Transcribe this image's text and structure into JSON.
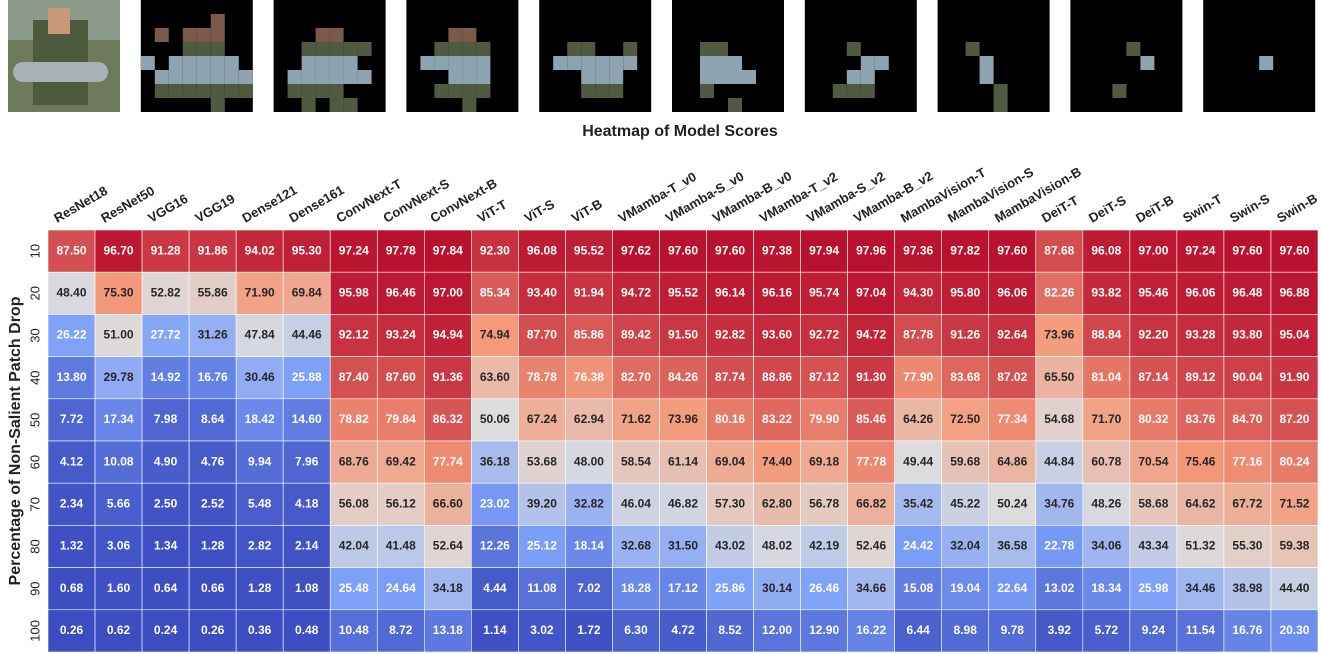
{
  "chart_data": {
    "type": "heatmap",
    "title": "Heatmap of Model Scores",
    "ylabel": "Percentage of Non-Salient Patch Drop",
    "x_categories": [
      "ResNet18",
      "ResNet50",
      "VGG16",
      "VGG19",
      "Dense121",
      "Dense161",
      "ConvNext-T",
      "ConvNext-S",
      "ConvNext-B",
      "ViT-T",
      "ViT-S",
      "ViT-B",
      "VMamba-T_v0",
      "VMamba-S_v0",
      "VMamba-B_v0",
      "VMamba-T_v2",
      "VMamba-S_v2",
      "VMamba-B_v2",
      "MambaVision-T",
      "MambaVision-S",
      "MambaVision-B",
      "DeiT-T",
      "DeiT-S",
      "DeiT-B",
      "Swin-T",
      "Swin-S",
      "Swin-B"
    ],
    "y_categories": [
      10,
      20,
      30,
      40,
      50,
      60,
      70,
      80,
      90,
      100
    ],
    "vlim": [
      0,
      100
    ],
    "colormap": [
      "#3b4cc0",
      "#7b9ff9",
      "#dddddd",
      "#f49a7b",
      "#b40426"
    ],
    "values": [
      [
        87.5,
        96.7,
        91.28,
        91.86,
        94.02,
        95.3,
        97.24,
        97.78,
        97.84,
        92.3,
        96.08,
        95.52,
        97.62,
        97.6,
        97.6,
        97.38,
        97.94,
        97.96,
        97.36,
        97.82,
        97.6,
        87.68,
        96.08,
        97,
        97.24,
        97.6,
        97.6
      ],
      [
        48.4,
        75.3,
        52.82,
        55.86,
        71.9,
        69.84,
        95.98,
        96.46,
        97,
        85.34,
        93.4,
        91.94,
        94.72,
        95.52,
        96.14,
        96.16,
        95.74,
        97.04,
        94.3,
        95.8,
        96.06,
        82.26,
        93.82,
        95.46,
        96.06,
        96.48,
        96.88
      ],
      [
        26.22,
        51,
        27.72,
        31.26,
        47.84,
        44.46,
        92.12,
        93.24,
        94.94,
        74.94,
        87.7,
        85.86,
        89.42,
        91.5,
        92.82,
        93.6,
        92.72,
        94.72,
        87.78,
        91.26,
        92.64,
        73.96,
        88.84,
        92.2,
        93.28,
        93.8,
        95.04
      ],
      [
        13.8,
        29.78,
        14.92,
        16.76,
        30.46,
        25.88,
        87.4,
        87.6,
        91.36,
        63.6,
        78.78,
        76.38,
        82.7,
        84.26,
        87.74,
        88.86,
        87.12,
        91.3,
        77.9,
        83.68,
        87.02,
        65.5,
        81.04,
        87.14,
        89.12,
        90.04,
        91.9
      ],
      [
        7.72,
        17.34,
        7.98,
        8.64,
        18.42,
        14.6,
        78.82,
        79.84,
        86.32,
        50.06,
        67.24,
        62.94,
        71.62,
        73.96,
        80.16,
        83.22,
        79.9,
        85.46,
        64.26,
        72.5,
        77.34,
        54.68,
        71.7,
        80.32,
        83.76,
        84.7,
        87.2
      ],
      [
        4.12,
        10.08,
        4.9,
        4.76,
        9.94,
        7.96,
        68.76,
        69.42,
        77.74,
        36.18,
        53.68,
        48,
        58.54,
        61.14,
        69.04,
        74.4,
        69.18,
        77.78,
        49.44,
        59.68,
        64.86,
        44.84,
        60.78,
        70.54,
        75.46,
        77.16,
        80.24
      ],
      [
        2.34,
        5.66,
        2.5,
        2.52,
        5.48,
        4.18,
        56.08,
        56.12,
        66.6,
        23.02,
        39.2,
        32.82,
        46.04,
        46.82,
        57.3,
        62.8,
        56.78,
        66.82,
        35.42,
        45.22,
        50.24,
        34.76,
        48.26,
        58.68,
        64.62,
        67.72,
        71.52
      ],
      [
        1.32,
        3.06,
        1.34,
        1.28,
        2.82,
        2.14,
        42.04,
        41.48,
        52.64,
        12.26,
        25.12,
        18.14,
        32.68,
        31.5,
        43.02,
        48.02,
        42.19,
        52.46,
        24.42,
        32.04,
        36.58,
        22.78,
        34.06,
        43.34,
        51.32,
        55.3,
        59.38
      ],
      [
        0.68,
        1.6,
        0.64,
        0.66,
        1.28,
        1.08,
        25.48,
        24.64,
        34.18,
        4.44,
        11.08,
        7.02,
        18.28,
        17.12,
        25.86,
        30.14,
        26.46,
        34.66,
        15.08,
        19.04,
        22.64,
        13.02,
        18.34,
        25.98,
        34.46,
        38.98,
        44.4
      ],
      [
        0.26,
        0.62,
        0.24,
        0.26,
        0.36,
        0.48,
        10.48,
        8.72,
        13.18,
        1.14,
        3.02,
        1.72,
        6.3,
        4.72,
        8.52,
        12,
        12.9,
        16.22,
        6.44,
        8.98,
        9.78,
        3.92,
        5.72,
        9.24,
        11.54,
        16.76,
        20.3
      ]
    ],
    "value_labels": [
      [
        "87.50",
        "96.70",
        "91.28",
        "91.86",
        "94.02",
        "95.30",
        "97.24",
        "97.78",
        "97.84",
        "92.30",
        "96.08",
        "95.52",
        "97.62",
        "97.60",
        "97.60",
        "97.38",
        "97.94",
        "97.96",
        "97.36",
        "97.82",
        "97.60",
        "87.68",
        "96.08",
        "97.00",
        "97.24",
        "97.60",
        "97.60"
      ],
      [
        "48.40",
        "75.30",
        "52.82",
        "55.86",
        "71.90",
        "69.84",
        "95.98",
        "96.46",
        "97.00",
        "85.34",
        "93.40",
        "91.94",
        "94.72",
        "95.52",
        "96.14",
        "96.16",
        "95.74",
        "97.04",
        "94.30",
        "95.80",
        "96.06",
        "82.26",
        "93.82",
        "95.46",
        "96.06",
        "96.48",
        "96.88"
      ],
      [
        "26.22",
        "51.00",
        "27.72",
        "31.26",
        "47.84",
        "44.46",
        "92.12",
        "93.24",
        "94.94",
        "74.94",
        "87.70",
        "85.86",
        "89.42",
        "91.50",
        "92.82",
        "93.60",
        "92.72",
        "94.72",
        "87.78",
        "91.26",
        "92.64",
        "73.96",
        "88.84",
        "92.20",
        "93.28",
        "93.80",
        "95.04"
      ],
      [
        "13.80",
        "29.78",
        "14.92",
        "16.76",
        "30.46",
        "25.88",
        "87.40",
        "87.60",
        "91.36",
        "63.60",
        "78.78",
        "76.38",
        "82.70",
        "84.26",
        "87.74",
        "88.86",
        "87.12",
        "91.30",
        "77.90",
        "83.68",
        "87.02",
        "65.50",
        "81.04",
        "87.14",
        "89.12",
        "90.04",
        "91.90"
      ],
      [
        "7.72",
        "17.34",
        "7.98",
        "8.64",
        "18.42",
        "14.60",
        "78.82",
        "79.84",
        "86.32",
        "50.06",
        "67.24",
        "62.94",
        "71.62",
        "73.96",
        "80.16",
        "83.22",
        "79.90",
        "85.46",
        "64.26",
        "72.50",
        "77.34",
        "54.68",
        "71.70",
        "80.32",
        "83.76",
        "84.70",
        "87.20"
      ],
      [
        "4.12",
        "10.08",
        "4.90",
        "4.76",
        "9.94",
        "7.96",
        "68.76",
        "69.42",
        "77.74",
        "36.18",
        "53.68",
        "48.00",
        "58.54",
        "61.14",
        "69.04",
        "74.40",
        "69.18",
        "77.78",
        "49.44",
        "59.68",
        "64.86",
        "44.84",
        "60.78",
        "70.54",
        "75.46",
        "77.16",
        "80.24"
      ],
      [
        "2.34",
        "5.66",
        "2.50",
        "2.52",
        "5.48",
        "4.18",
        "56.08",
        "56.12",
        "66.60",
        "23.02",
        "39.20",
        "32.82",
        "46.04",
        "46.82",
        "57.30",
        "62.80",
        "56.78",
        "66.82",
        "35.42",
        "45.22",
        "50.24",
        "34.76",
        "48.26",
        "58.68",
        "64.62",
        "67.72",
        "71.52"
      ],
      [
        "1.32",
        "3.06",
        "1.34",
        "1.28",
        "2.82",
        "2.14",
        "42.04",
        "41.48",
        "52.64",
        "12.26",
        "25.12",
        "18.14",
        "32.68",
        "31.50",
        "43.02",
        "48.02",
        "42.19",
        "52.46",
        "24.42",
        "32.04",
        "36.58",
        "22.78",
        "34.06",
        "43.34",
        "51.32",
        "55.30",
        "59.38"
      ],
      [
        "0.68",
        "1.60",
        "0.64",
        "0.66",
        "1.28",
        "1.08",
        "25.48",
        "24.64",
        "34.18",
        "4.44",
        "11.08",
        "7.02",
        "18.28",
        "17.12",
        "25.86",
        "30.14",
        "26.46",
        "34.66",
        "15.08",
        "19.04",
        "22.64",
        "13.02",
        "18.34",
        "25.98",
        "34.46",
        "38.98",
        "44.40"
      ],
      [
        "0.26",
        "0.62",
        "0.24",
        "0.26",
        "0.36",
        "0.48",
        "10.48",
        "8.72",
        "13.18",
        "1.14",
        "3.02",
        "1.72",
        "6.30",
        "4.72",
        "8.52",
        "12.00",
        "12.90",
        "16.22",
        "6.44",
        "8.98",
        "9.78",
        "3.92",
        "5.72",
        "9.24",
        "11.54",
        "16.76",
        "20.30"
      ]
    ]
  }
}
